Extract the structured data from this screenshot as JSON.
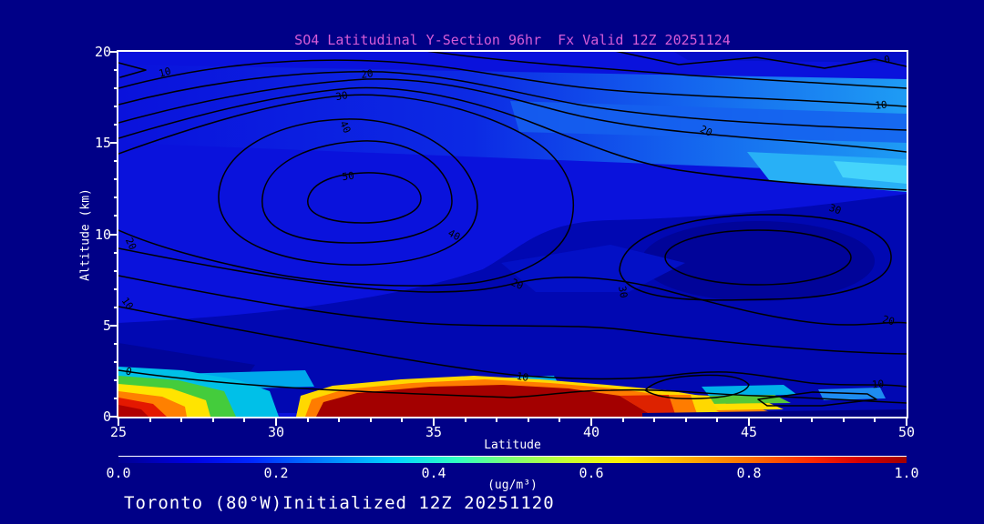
{
  "title": "SO4 Latitudinal Y-Section 96hr  Fx Valid 12Z 20251124",
  "footer": "Toronto (80°W)Initialized 12Z 20251120",
  "colors": {
    "background": "#000087",
    "title_text": "#d65cd6",
    "axis_text": "#ffffff",
    "contour_line": "#000000",
    "surface_max_band": "#a30000"
  },
  "chart_data": {
    "type": "contour",
    "title": "SO4 Latitudinal Y-Section 96hr  Fx Valid 12Z 20251124",
    "xlabel": "Latitude",
    "ylabel": "Altitude (km)",
    "xlim": [
      25,
      50
    ],
    "ylim": [
      0,
      20
    ],
    "x_ticks": [
      25,
      30,
      35,
      40,
      45,
      50
    ],
    "y_ticks": [
      0,
      5,
      10,
      15,
      20
    ],
    "x_minor_interval": 1,
    "y_minor_interval": 1,
    "grid": false,
    "contour_interval": 5,
    "contour_label_interval": 10,
    "contour_labels": [
      {
        "v": 10,
        "lat": 26.5,
        "alt": 18.9,
        "rot": -15
      },
      {
        "v": 20,
        "lat": 32.9,
        "alt": 18.8,
        "rot": -8
      },
      {
        "v": 30,
        "lat": 32.1,
        "alt": 17.6,
        "rot": -10
      },
      {
        "v": 40,
        "lat": 32.1,
        "alt": 16.0,
        "rot": 65
      },
      {
        "v": 50,
        "lat": 32.3,
        "alt": 13.2,
        "rot": -8
      },
      {
        "v": 40,
        "lat": 35.6,
        "alt": 10.0,
        "rot": 28
      },
      {
        "v": 20,
        "lat": 37.6,
        "alt": 7.3,
        "rot": 25
      },
      {
        "v": 0,
        "lat": 49.4,
        "alt": 19.6,
        "rot": -10
      },
      {
        "v": 10,
        "lat": 49.2,
        "alt": 17.1,
        "rot": -5
      },
      {
        "v": 20,
        "lat": 43.6,
        "alt": 15.7,
        "rot": 25
      },
      {
        "v": 30,
        "lat": 47.7,
        "alt": 11.4,
        "rot": 20
      },
      {
        "v": 30,
        "lat": 40.9,
        "alt": 7.0,
        "rot": 80
      },
      {
        "v": 20,
        "lat": 49.4,
        "alt": 5.3,
        "rot": 15
      },
      {
        "v": 10,
        "lat": 37.8,
        "alt": 2.2,
        "rot": 10
      },
      {
        "v": 10,
        "lat": 49.1,
        "alt": 1.8,
        "rot": -5
      },
      {
        "v": 20,
        "lat": 25.3,
        "alt": 9.6,
        "rot": 65
      },
      {
        "v": 10,
        "lat": 25.2,
        "alt": 6.3,
        "rot": 55
      },
      {
        "v": 0,
        "lat": 25.3,
        "alt": 2.5,
        "rot": 15
      }
    ],
    "field_features": {
      "upper_maximum": {
        "lat": 32.5,
        "alt_km": 13,
        "contour_value": ">50"
      },
      "right_maximum": {
        "lat": 41.5,
        "alt_km": 8.5,
        "contour_value": "~35"
      },
      "surface_hotspot": {
        "lat_range": [
          25,
          27
        ],
        "alt_range_km": [
          0,
          2
        ],
        "fill_value_ugm3": "~1.0"
      },
      "surface_dark_red_band": {
        "lat_range": [
          30.8,
          41.5
        ],
        "alt_range_km": [
          0,
          1.5
        ],
        "fill_value_ugm3": ">1.0"
      },
      "surface_east_tail": {
        "lat_range": [
          41.5,
          45.5
        ],
        "alt_range_km": [
          0,
          1.2
        ],
        "fill_value_ugm3": "0.3-0.8 decreasing"
      }
    },
    "colorbar": {
      "min": 0.0,
      "max": 1.0,
      "ticks": [
        "0.0",
        "0.2",
        "0.4",
        "0.6",
        "0.8",
        "1.0"
      ],
      "units": "(ug/m³)",
      "palette": "jet (blue→cyan→green→yellow→orange→dark red)"
    },
    "legend_position": "bottom colorbar"
  }
}
